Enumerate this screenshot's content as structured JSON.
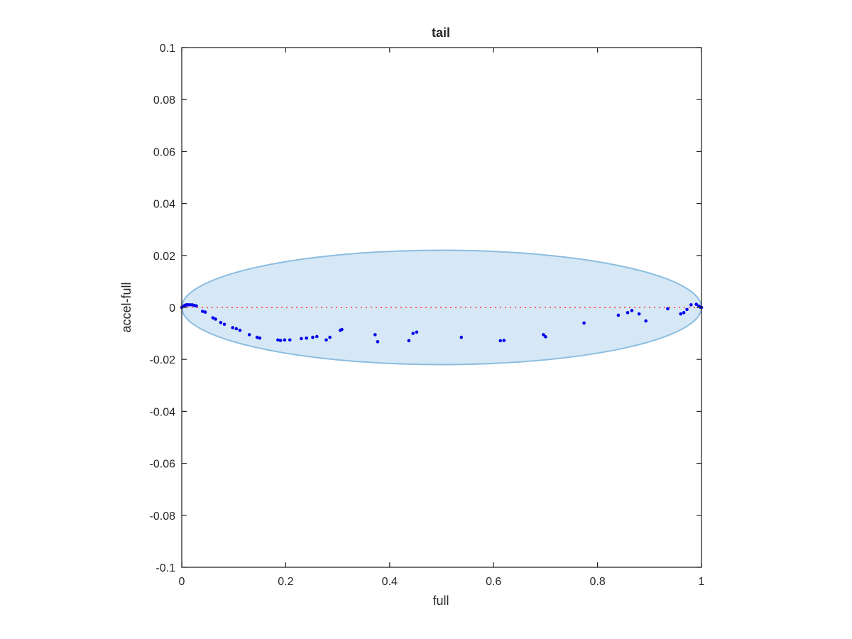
{
  "chart_data": {
    "type": "scatter",
    "title": "tail",
    "xlabel": "full",
    "ylabel": "accel-full",
    "xlim": [
      0,
      1
    ],
    "ylim": [
      -0.1,
      0.1
    ],
    "xticks": [
      0,
      0.2,
      0.4,
      0.6,
      0.8,
      1
    ],
    "xtick_labels": [
      "0",
      "0.2",
      "0.4",
      "0.6",
      "0.8",
      "1"
    ],
    "yticks": [
      0.1,
      0.08,
      0.06,
      0.04,
      0.02,
      0,
      -0.02,
      -0.04,
      -0.06,
      -0.08,
      -0.1
    ],
    "ytick_labels": [
      "0.1",
      "0.08",
      "0.06",
      "0.04",
      "0.02",
      "0",
      "-0.02",
      "-0.04",
      "-0.06",
      "-0.08",
      "-0.1"
    ],
    "grid": false,
    "box": true,
    "colors": {
      "points": "#0000ee",
      "zero_line": "#ff3333",
      "ellipse_fill": "#d6e8f5",
      "ellipse_edge": "#8cbde0",
      "axes": "#262626"
    },
    "reference_line": {
      "y": 0,
      "x": [
        0,
        1
      ],
      "style": "dotted"
    },
    "ellipse": {
      "cx": 0.5,
      "cy": 0,
      "rx": 0.5,
      "ry": 0.022
    },
    "series": [
      {
        "points": [
          [
            0.0,
            0.0
          ],
          [
            0.003,
            0.0005
          ],
          [
            0.006,
            0.0008
          ],
          [
            0.009,
            0.001
          ],
          [
            0.012,
            0.001
          ],
          [
            0.016,
            0.001
          ],
          [
            0.02,
            0.001
          ],
          [
            0.024,
            0.0008
          ],
          [
            0.028,
            0.0006
          ],
          [
            0.04,
            -0.0015
          ],
          [
            0.045,
            -0.0018
          ],
          [
            0.06,
            -0.004
          ],
          [
            0.065,
            -0.0045
          ],
          [
            0.075,
            -0.0058
          ],
          [
            0.082,
            -0.0065
          ],
          [
            0.098,
            -0.0078
          ],
          [
            0.105,
            -0.0082
          ],
          [
            0.112,
            -0.0088
          ],
          [
            0.13,
            -0.0105
          ],
          [
            0.145,
            -0.0115
          ],
          [
            0.15,
            -0.0118
          ],
          [
            0.185,
            -0.0125
          ],
          [
            0.19,
            -0.0127
          ],
          [
            0.198,
            -0.0125
          ],
          [
            0.208,
            -0.0125
          ],
          [
            0.23,
            -0.012
          ],
          [
            0.24,
            -0.0118
          ],
          [
            0.252,
            -0.0115
          ],
          [
            0.26,
            -0.0112
          ],
          [
            0.278,
            -0.0125
          ],
          [
            0.285,
            -0.0115
          ],
          [
            0.305,
            -0.0088
          ],
          [
            0.308,
            -0.0085
          ],
          [
            0.372,
            -0.0105
          ],
          [
            0.377,
            -0.0132
          ],
          [
            0.437,
            -0.0128
          ],
          [
            0.445,
            -0.01
          ],
          [
            0.452,
            -0.0095
          ],
          [
            0.538,
            -0.0115
          ],
          [
            0.613,
            -0.0128
          ],
          [
            0.62,
            -0.0127
          ],
          [
            0.696,
            -0.0105
          ],
          [
            0.7,
            -0.0113
          ],
          [
            0.774,
            -0.006
          ],
          [
            0.84,
            -0.003
          ],
          [
            0.858,
            -0.002
          ],
          [
            0.866,
            -0.0012
          ],
          [
            0.88,
            -0.0025
          ],
          [
            0.893,
            -0.0052
          ],
          [
            0.935,
            -0.0005
          ],
          [
            0.96,
            -0.0025
          ],
          [
            0.966,
            -0.002
          ],
          [
            0.972,
            -0.0008
          ],
          [
            0.98,
            0.001
          ],
          [
            0.99,
            0.0012
          ],
          [
            0.995,
            0.0005
          ],
          [
            0.998,
            0.0001
          ],
          [
            1.0,
            0.0
          ]
        ]
      }
    ]
  }
}
